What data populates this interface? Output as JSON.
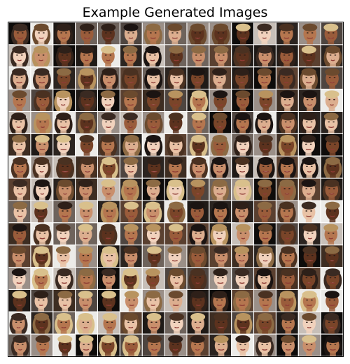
{
  "title": "Example Generated Images",
  "grid": {
    "rows": 15,
    "cols": 15,
    "gap_color": "#ffffff",
    "frame_color": "#000000"
  },
  "palette": {
    "skin": [
      "#f1d2bd",
      "#e9c2a6",
      "#dcae8f",
      "#c98f6c",
      "#b5764f",
      "#9a5c3b",
      "#7a4529",
      "#5c321e"
    ],
    "hair": [
      "#1b1412",
      "#2e2019",
      "#4a3121",
      "#6b4a2e",
      "#8c6a44",
      "#b8935f",
      "#d9c08c",
      "#3a2a22"
    ],
    "background": [
      "#0e0c0b",
      "#2b2420",
      "#4e4540",
      "#6e635c",
      "#9a8f88",
      "#c7bfb8",
      "#ecebe8",
      "#3d2d22",
      "#5a4030",
      "#1f1a17"
    ]
  }
}
